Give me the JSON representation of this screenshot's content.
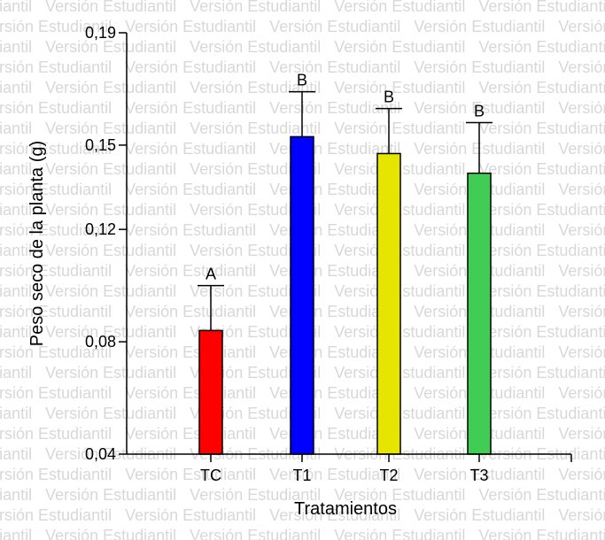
{
  "watermark": {
    "text": "Versión Estudiantil"
  },
  "chart_data": {
    "type": "bar",
    "title": "",
    "xlabel": "Tratamientos",
    "ylabel": "Peso seco de la planta (g)",
    "ylim": [
      0.04,
      0.19
    ],
    "yticks": [
      0.04,
      0.08,
      0.12,
      0.15,
      0.19
    ],
    "ytick_labels": [
      "0,04",
      "0,08",
      "0,12",
      "0,15",
      "0,19"
    ],
    "categories": [
      "TC",
      "T1",
      "T2",
      "T3"
    ],
    "values": [
      0.084,
      0.153,
      0.147,
      0.14
    ],
    "errors": [
      0.016,
      0.016,
      0.016,
      0.018
    ],
    "group_labels": [
      "A",
      "B",
      "B",
      "B"
    ],
    "colors": [
      "#ff0000",
      "#0000ff",
      "#e5e500",
      "#40cc55"
    ],
    "grid": false,
    "legend": "none"
  }
}
